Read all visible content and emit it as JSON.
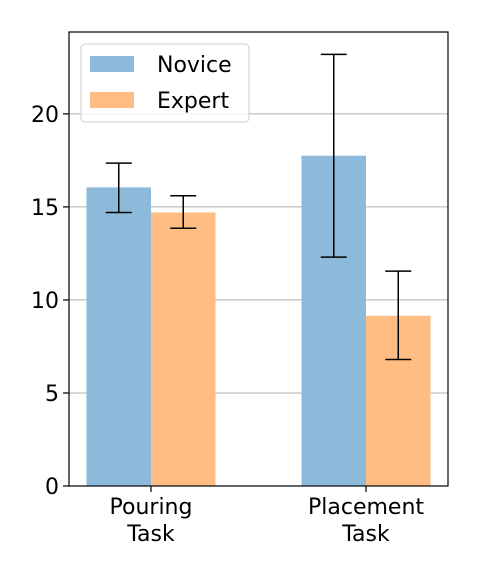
{
  "chart_data": {
    "type": "bar",
    "title": "",
    "xlabel": "",
    "ylabel": "",
    "categories": [
      [
        "Pouring",
        "Task"
      ],
      [
        "Placement",
        "Task"
      ]
    ],
    "series": [
      {
        "name": "Novice",
        "color": "#8dbada",
        "values": [
          16.05,
          17.75
        ],
        "error_low": [
          14.7,
          12.3
        ],
        "error_high": [
          17.35,
          23.2
        ]
      },
      {
        "name": "Expert",
        "color": "#ffbd84",
        "values": [
          14.7,
          9.15
        ],
        "error_low": [
          13.85,
          6.8
        ],
        "error_high": [
          15.6,
          11.55
        ]
      }
    ],
    "ylim": [
      0,
      24.4
    ],
    "yticks": [
      0,
      5,
      10,
      15,
      20
    ],
    "grid": "horizontal",
    "legend_position": "top-left"
  }
}
